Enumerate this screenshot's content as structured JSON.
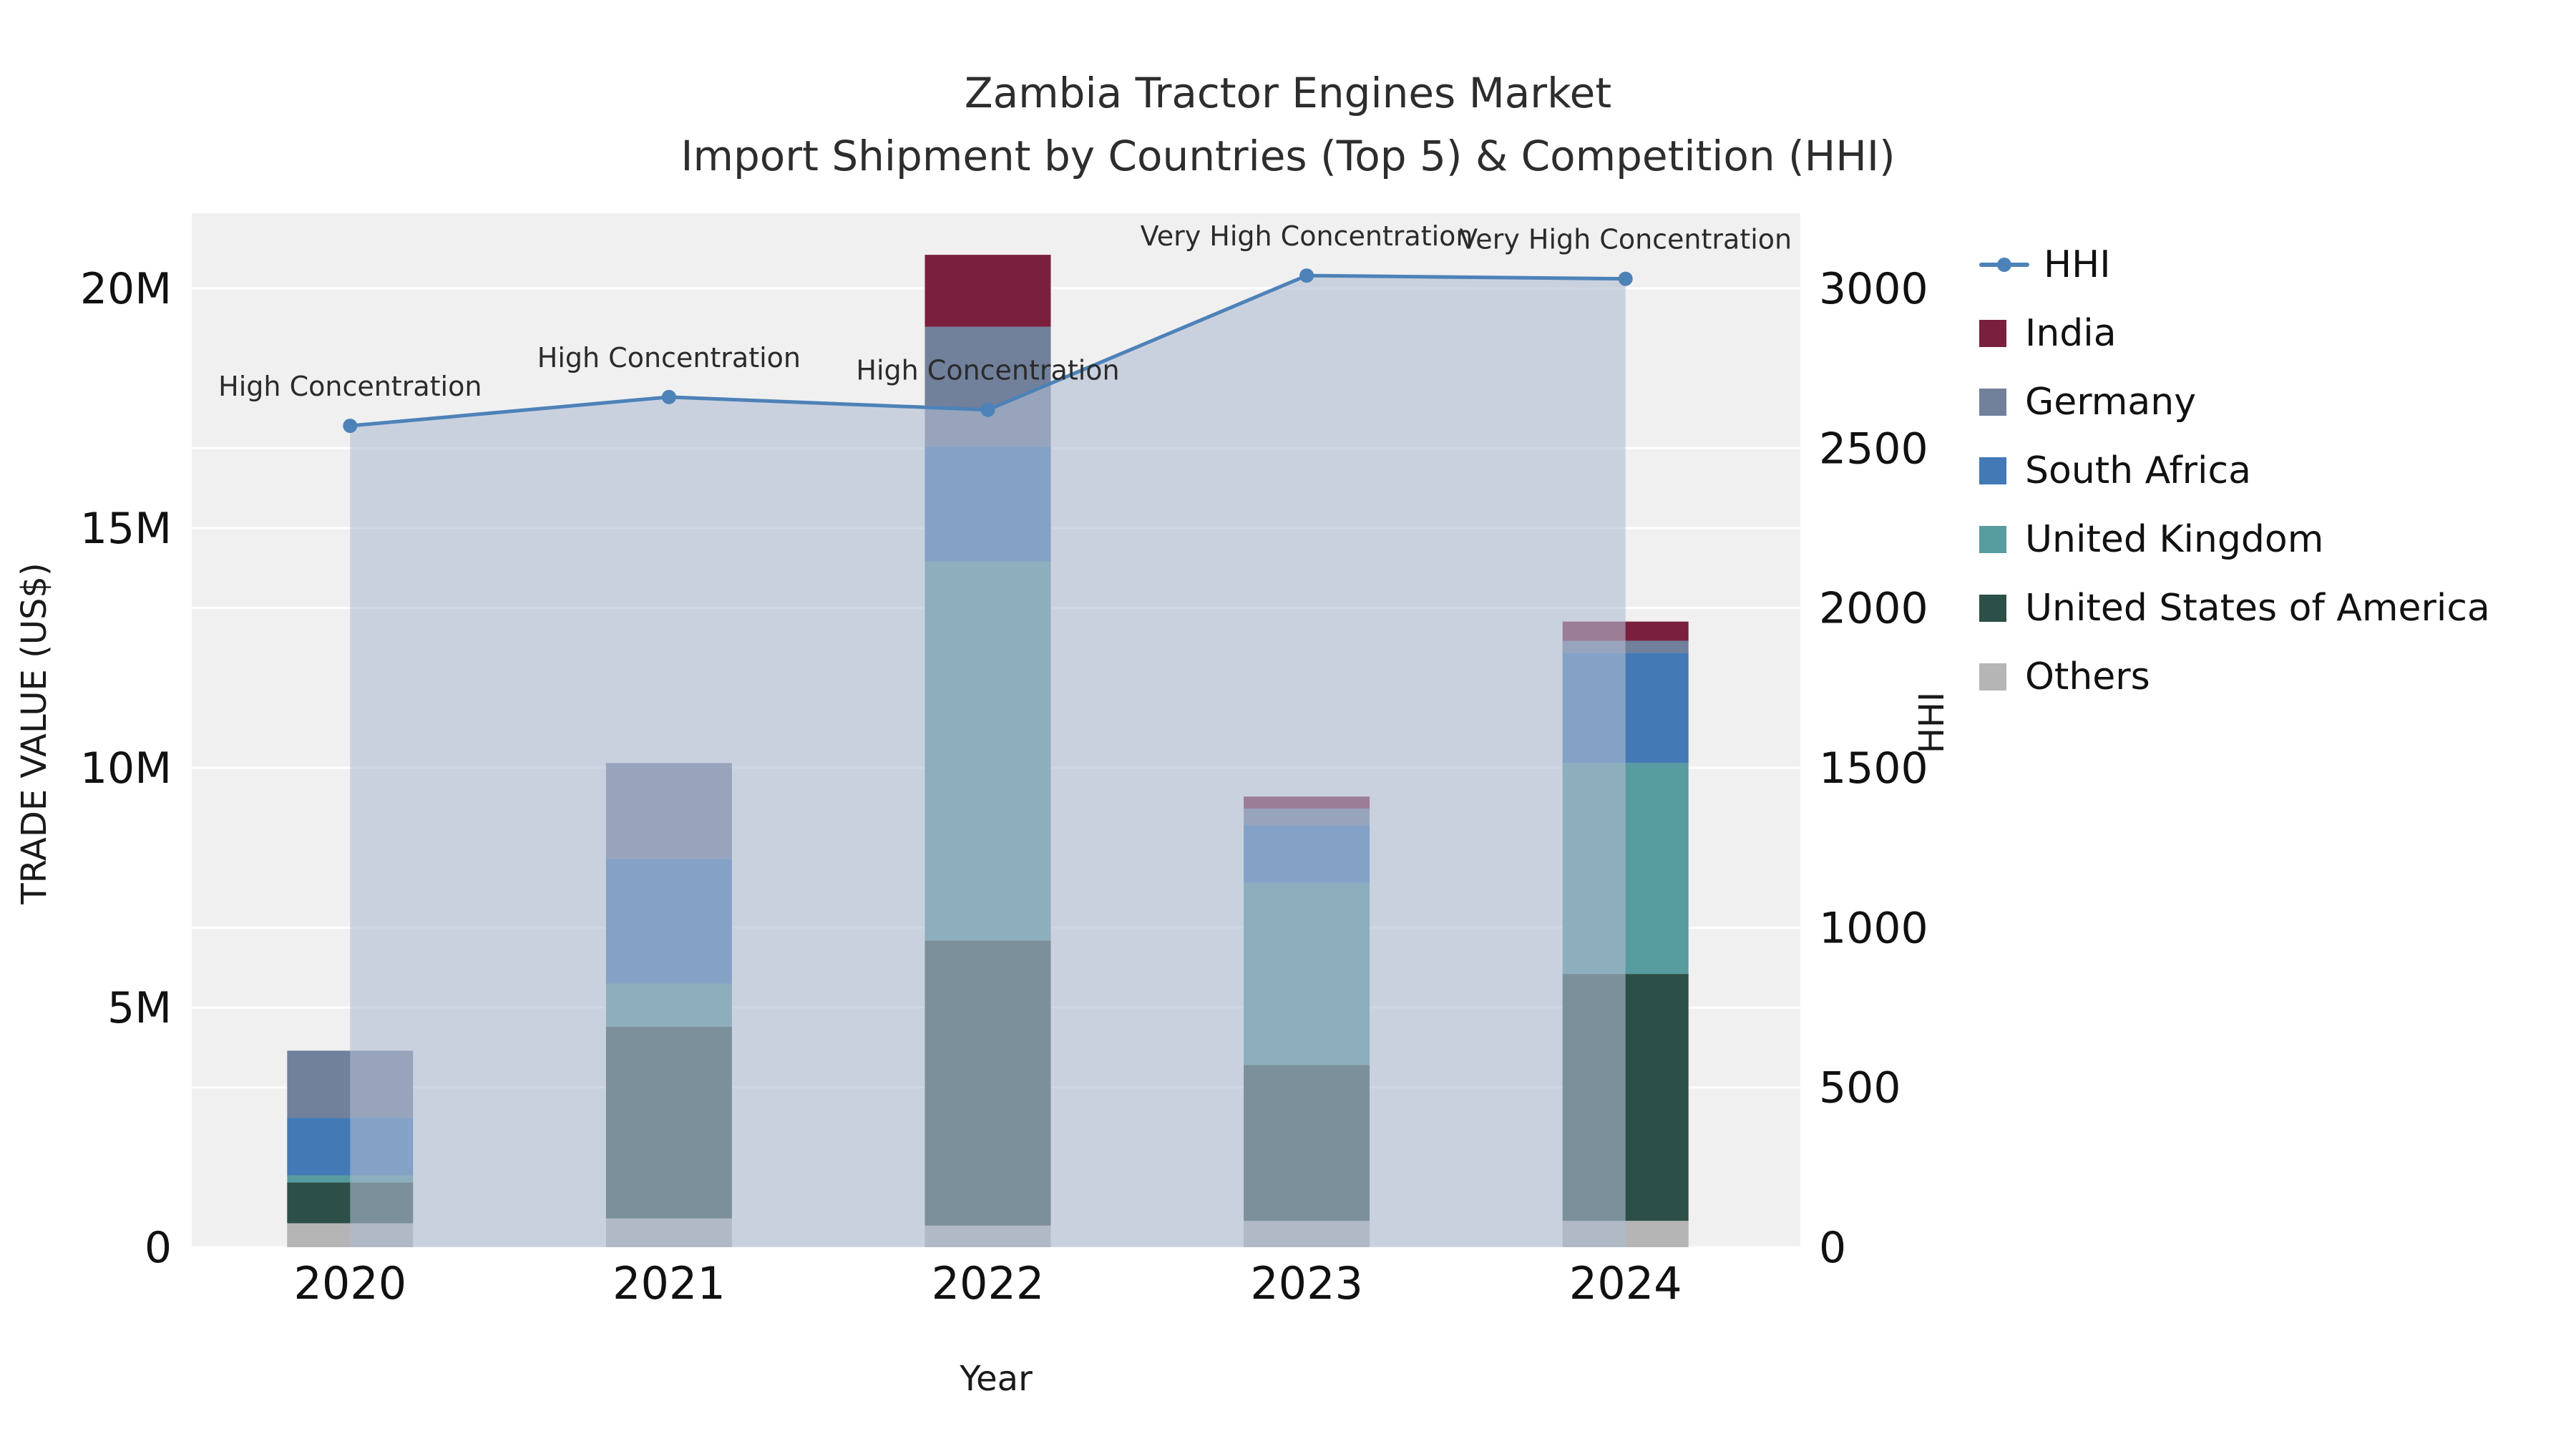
{
  "title_line1": "Zambia Tractor Engines Market",
  "title_line2": "Import Shipment by Countries (Top 5) & Competition (HHI)",
  "axes": {
    "x_label": "Year",
    "y_left_label": "TRADE VALUE (US$)",
    "y_right_label": "HHI",
    "y_left_ticks": [
      {
        "label": "0",
        "value": 0
      },
      {
        "label": "5M",
        "value": 5000000
      },
      {
        "label": "10M",
        "value": 10000000
      },
      {
        "label": "15M",
        "value": 15000000
      },
      {
        "label": "20M",
        "value": 20000000
      }
    ],
    "y_right_ticks": [
      {
        "label": "0",
        "value": 0
      },
      {
        "label": "500",
        "value": 500
      },
      {
        "label": "1000",
        "value": 1000
      },
      {
        "label": "1500",
        "value": 1500
      },
      {
        "label": "2000",
        "value": 2000
      },
      {
        "label": "2500",
        "value": 2500
      },
      {
        "label": "3000",
        "value": 3000
      }
    ]
  },
  "chart_data": {
    "type": "bar",
    "subtype": "stacked-bars-with-line-overlay",
    "categories": [
      "2020",
      "2021",
      "2022",
      "2023",
      "2024"
    ],
    "xlabel": "Year",
    "ylabel_left": "TRADE VALUE (US$)",
    "ylabel_right": "HHI",
    "y_left_range": [
      0,
      20000000
    ],
    "y_right_range": [
      0,
      3000
    ],
    "grid": true,
    "plot_bg": "#f0f0f0",
    "grid_color": "#ffffff",
    "series": [
      {
        "name": "India",
        "color": "#7b1f3e",
        "values": [
          0,
          0,
          1500000,
          250000,
          400000
        ]
      },
      {
        "name": "Germany",
        "color": "#71809b",
        "values": [
          1400000,
          2000000,
          2500000,
          350000,
          250000
        ]
      },
      {
        "name": "South Africa",
        "color": "#4379b4",
        "values": [
          1200000,
          2600000,
          2400000,
          1200000,
          2300000
        ]
      },
      {
        "name": "United Kingdom",
        "color": "#579c9f",
        "values": [
          150000,
          900000,
          7900000,
          3800000,
          4400000
        ]
      },
      {
        "name": "United States of America",
        "color": "#2c4f48",
        "values": [
          850000,
          4000000,
          5950000,
          3250000,
          5150000
        ]
      },
      {
        "name": "Others",
        "color": "#b5b5b5",
        "values": [
          500000,
          600000,
          450000,
          550000,
          550000
        ]
      }
    ],
    "stack_bottom_to_top": [
      "Others",
      "United States of America",
      "United Kingdom",
      "South Africa",
      "Germany",
      "India"
    ],
    "bar_totals": [
      4100000,
      10100000,
      20700000,
      9400000,
      13050000
    ],
    "line": {
      "name": "HHI",
      "axis": "right",
      "color": "#4d82b8",
      "area_fill": "rgba(177,189,210,0.6)",
      "values": [
        2570,
        2660,
        2620,
        3040,
        3030
      ],
      "annotations": [
        "High Concentration",
        "High Concentration",
        "High Concentration",
        "Very High Concentration",
        "Very High Concentration"
      ]
    }
  },
  "legend": [
    {
      "label": "HHI",
      "swatch": "line",
      "color": "#4d82b8"
    },
    {
      "label": "India",
      "swatch": "square",
      "color": "#7b1f3e"
    },
    {
      "label": "Germany",
      "swatch": "square",
      "color": "#71809b"
    },
    {
      "label": "South Africa",
      "swatch": "square",
      "color": "#4379b4"
    },
    {
      "label": "United Kingdom",
      "swatch": "square",
      "color": "#579c9f"
    },
    {
      "label": "United States of America",
      "swatch": "square",
      "color": "#2c4f48"
    },
    {
      "label": "Others",
      "swatch": "square",
      "color": "#b5b5b5"
    }
  ]
}
